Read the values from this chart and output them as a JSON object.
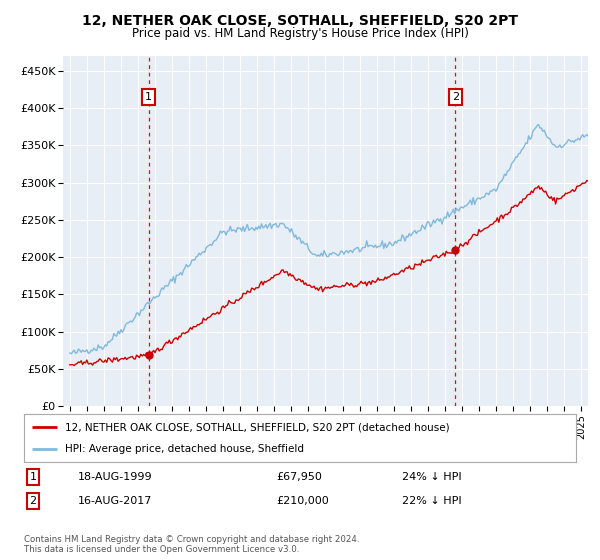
{
  "title": "12, NETHER OAK CLOSE, SOTHALL, SHEFFIELD, S20 2PT",
  "subtitle": "Price paid vs. HM Land Registry's House Price Index (HPI)",
  "legend_line1": "12, NETHER OAK CLOSE, SOTHALL, SHEFFIELD, S20 2PT (detached house)",
  "legend_line2": "HPI: Average price, detached house, Sheffield",
  "annotation1_date": "18-AUG-1999",
  "annotation1_price": "£67,950",
  "annotation1_hpi": "24% ↓ HPI",
  "annotation2_date": "16-AUG-2017",
  "annotation2_price": "£210,000",
  "annotation2_hpi": "22% ↓ HPI",
  "footnote": "Contains HM Land Registry data © Crown copyright and database right 2024.\nThis data is licensed under the Open Government Licence v3.0.",
  "sale1_year": 1999.625,
  "sale1_price": 67950,
  "sale2_year": 2017.625,
  "sale2_price": 210000,
  "ylim": [
    0,
    470000
  ],
  "yticks": [
    0,
    50000,
    100000,
    150000,
    200000,
    250000,
    300000,
    350000,
    400000,
    450000
  ],
  "hpi_color": "#7fb9dd",
  "sale_color": "#cc0000",
  "vline_color": "#cc0000",
  "plot_bg": "#e8eef5"
}
